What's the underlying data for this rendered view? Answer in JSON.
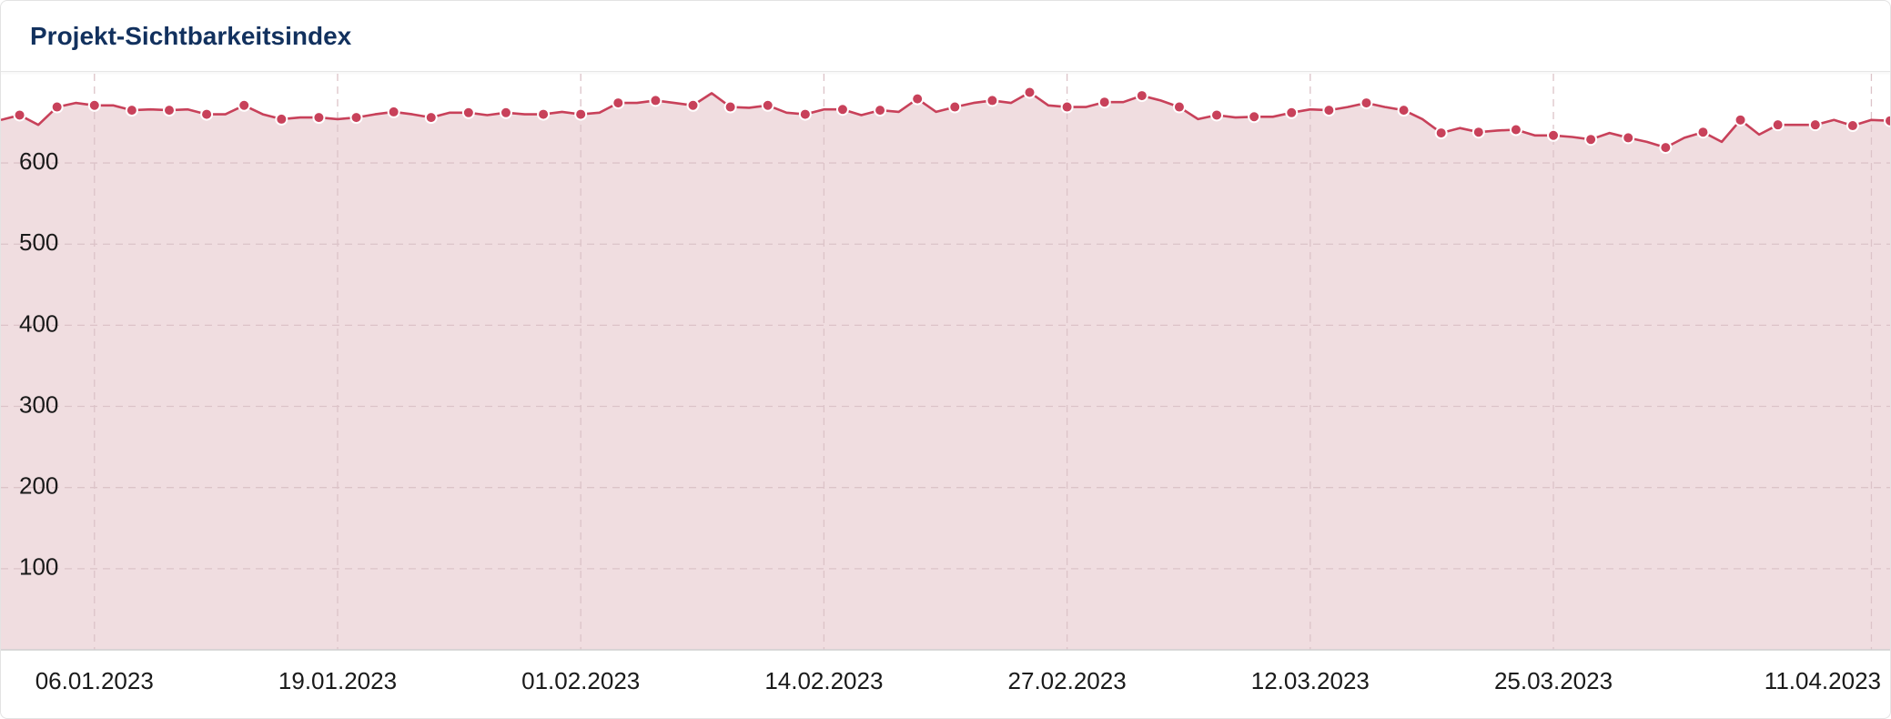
{
  "chart_data": {
    "type": "area",
    "title": "Projekt-Sichtbarkeitsindex",
    "x": [
      "01.01.2023",
      "02.01.2023",
      "03.01.2023",
      "04.01.2023",
      "05.01.2023",
      "06.01.2023",
      "07.01.2023",
      "08.01.2023",
      "09.01.2023",
      "10.01.2023",
      "11.01.2023",
      "12.01.2023",
      "13.01.2023",
      "14.01.2023",
      "15.01.2023",
      "16.01.2023",
      "17.01.2023",
      "18.01.2023",
      "19.01.2023",
      "20.01.2023",
      "21.01.2023",
      "22.01.2023",
      "23.01.2023",
      "24.01.2023",
      "25.01.2023",
      "26.01.2023",
      "27.01.2023",
      "28.01.2023",
      "29.01.2023",
      "30.01.2023",
      "31.01.2023",
      "01.02.2023",
      "02.02.2023",
      "03.02.2023",
      "04.02.2023",
      "05.02.2023",
      "06.02.2023",
      "07.02.2023",
      "08.02.2023",
      "09.02.2023",
      "10.02.2023",
      "11.02.2023",
      "12.02.2023",
      "13.02.2023",
      "14.02.2023",
      "15.02.2023",
      "16.02.2023",
      "17.02.2023",
      "18.02.2023",
      "19.02.2023",
      "20.02.2023",
      "21.02.2023",
      "22.02.2023",
      "23.02.2023",
      "24.02.2023",
      "25.02.2023",
      "26.02.2023",
      "27.02.2023",
      "28.02.2023",
      "01.03.2023",
      "02.03.2023",
      "03.03.2023",
      "04.03.2023",
      "05.03.2023",
      "06.03.2023",
      "07.03.2023",
      "08.03.2023",
      "09.03.2023",
      "10.03.2023",
      "11.03.2023",
      "12.03.2023",
      "13.03.2023",
      "14.03.2023",
      "15.03.2023",
      "16.03.2023",
      "17.03.2023",
      "18.03.2023",
      "19.03.2023",
      "20.03.2023",
      "21.03.2023",
      "22.03.2023",
      "23.03.2023",
      "24.03.2023",
      "25.03.2023",
      "26.03.2023",
      "27.03.2023",
      "28.03.2023",
      "29.03.2023",
      "30.03.2023",
      "31.03.2023",
      "01.04.2023",
      "02.04.2023",
      "03.04.2023",
      "04.04.2023",
      "05.04.2023",
      "06.04.2023",
      "07.04.2023",
      "08.04.2023",
      "09.04.2023",
      "10.04.2023",
      "11.04.2023",
      "12.04.2023"
    ],
    "values": [
      653,
      659,
      647,
      669,
      674,
      671,
      671,
      665,
      666,
      665,
      666,
      660,
      660,
      671,
      660,
      654,
      656,
      656,
      654,
      656,
      660,
      663,
      660,
      656,
      662,
      662,
      659,
      662,
      660,
      660,
      663,
      660,
      662,
      674,
      674,
      677,
      674,
      671,
      686,
      669,
      668,
      671,
      662,
      660,
      666,
      666,
      659,
      665,
      663,
      679,
      663,
      669,
      674,
      677,
      674,
      687,
      671,
      669,
      669,
      675,
      675,
      683,
      677,
      669,
      654,
      659,
      656,
      657,
      657,
      662,
      666,
      665,
      669,
      674,
      669,
      665,
      654,
      637,
      643,
      638,
      640,
      641,
      634,
      634,
      632,
      629,
      637,
      631,
      626,
      619,
      631,
      638,
      626,
      653,
      635,
      647,
      647,
      647,
      653,
      646,
      653,
      652
    ],
    "color": "#c8415a",
    "fill": "#f0dde0",
    "xlim": [
      "01.01.2023",
      "12.04.2023"
    ],
    "xticks": [
      "06.01.2023",
      "19.01.2023",
      "01.02.2023",
      "14.02.2023",
      "27.02.2023",
      "12.03.2023",
      "25.03.2023",
      "11.04.2023"
    ],
    "ylim": [
      0,
      710
    ],
    "yticks": [
      100,
      200,
      300,
      400,
      500,
      600
    ],
    "grid": true
  }
}
